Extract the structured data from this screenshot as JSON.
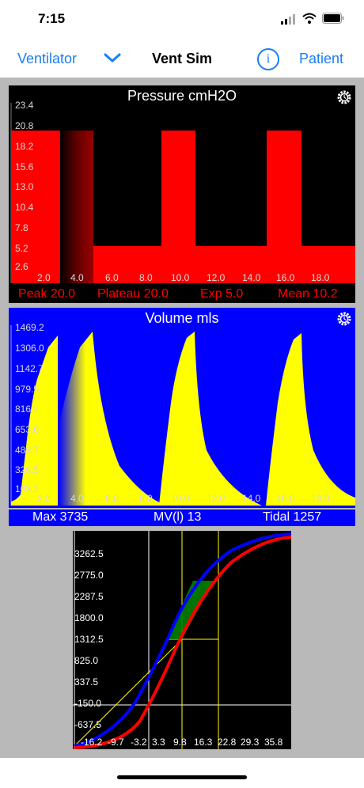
{
  "status_bar": {
    "time": "7:15"
  },
  "nav": {
    "left_label": "Ventilator",
    "title": "Vent Sim",
    "info_label": "i",
    "right_label": "Patient"
  },
  "pressure": {
    "title": "Pressure cmH2O",
    "y_ticks": [
      "23.4",
      "20.8",
      "18.2",
      "15.6",
      "13.0",
      "10.4",
      "7.8",
      "5.2",
      "2.6"
    ],
    "x_ticks": [
      "2.0",
      "4.0",
      "6.0",
      "8.0",
      "10.0",
      "12.0",
      "14.0",
      "16.0",
      "18.0"
    ],
    "stats": {
      "peak": "Peak 20.0",
      "plateau": "Plateau 20.0",
      "exp": "Exp 5.0",
      "mean": "Mean 10.2"
    },
    "colors": {
      "trace": "#ff0000",
      "background": "#000000"
    }
  },
  "volume": {
    "title": "Volume mls",
    "y_ticks": [
      "1469.2",
      "1306.0",
      "1142.7",
      "979.5",
      "816.2",
      "653.0",
      "489.7",
      "326.5",
      "163.2"
    ],
    "x_ticks": [
      "2.0",
      "4.0",
      "6.0",
      "8.0",
      "10.0",
      "12.0",
      "14.0",
      "16.0",
      "18.0"
    ],
    "stats": {
      "max": "Max 3735",
      "mv": "MV(l) 13",
      "tidal": "Tidal 1257"
    },
    "colors": {
      "trace": "#ffff00",
      "background": "#0000ff"
    }
  },
  "loop": {
    "y_ticks": [
      "3262.5",
      "2775.0",
      "2287.5",
      "1800.0",
      "1312.5",
      "825.0",
      "337.5",
      "-150.0",
      "-637.5"
    ],
    "x_ticks": [
      "-16.2",
      "-9.7",
      "-3.2",
      "3.3",
      "9.8",
      "16.3",
      "22.8",
      "29.3",
      "35.8"
    ],
    "colors": {
      "inspiration": "#0000ff",
      "expiration": "#ff0000",
      "guides": "#ffff00",
      "tidal_fill": "#008000"
    }
  }
}
